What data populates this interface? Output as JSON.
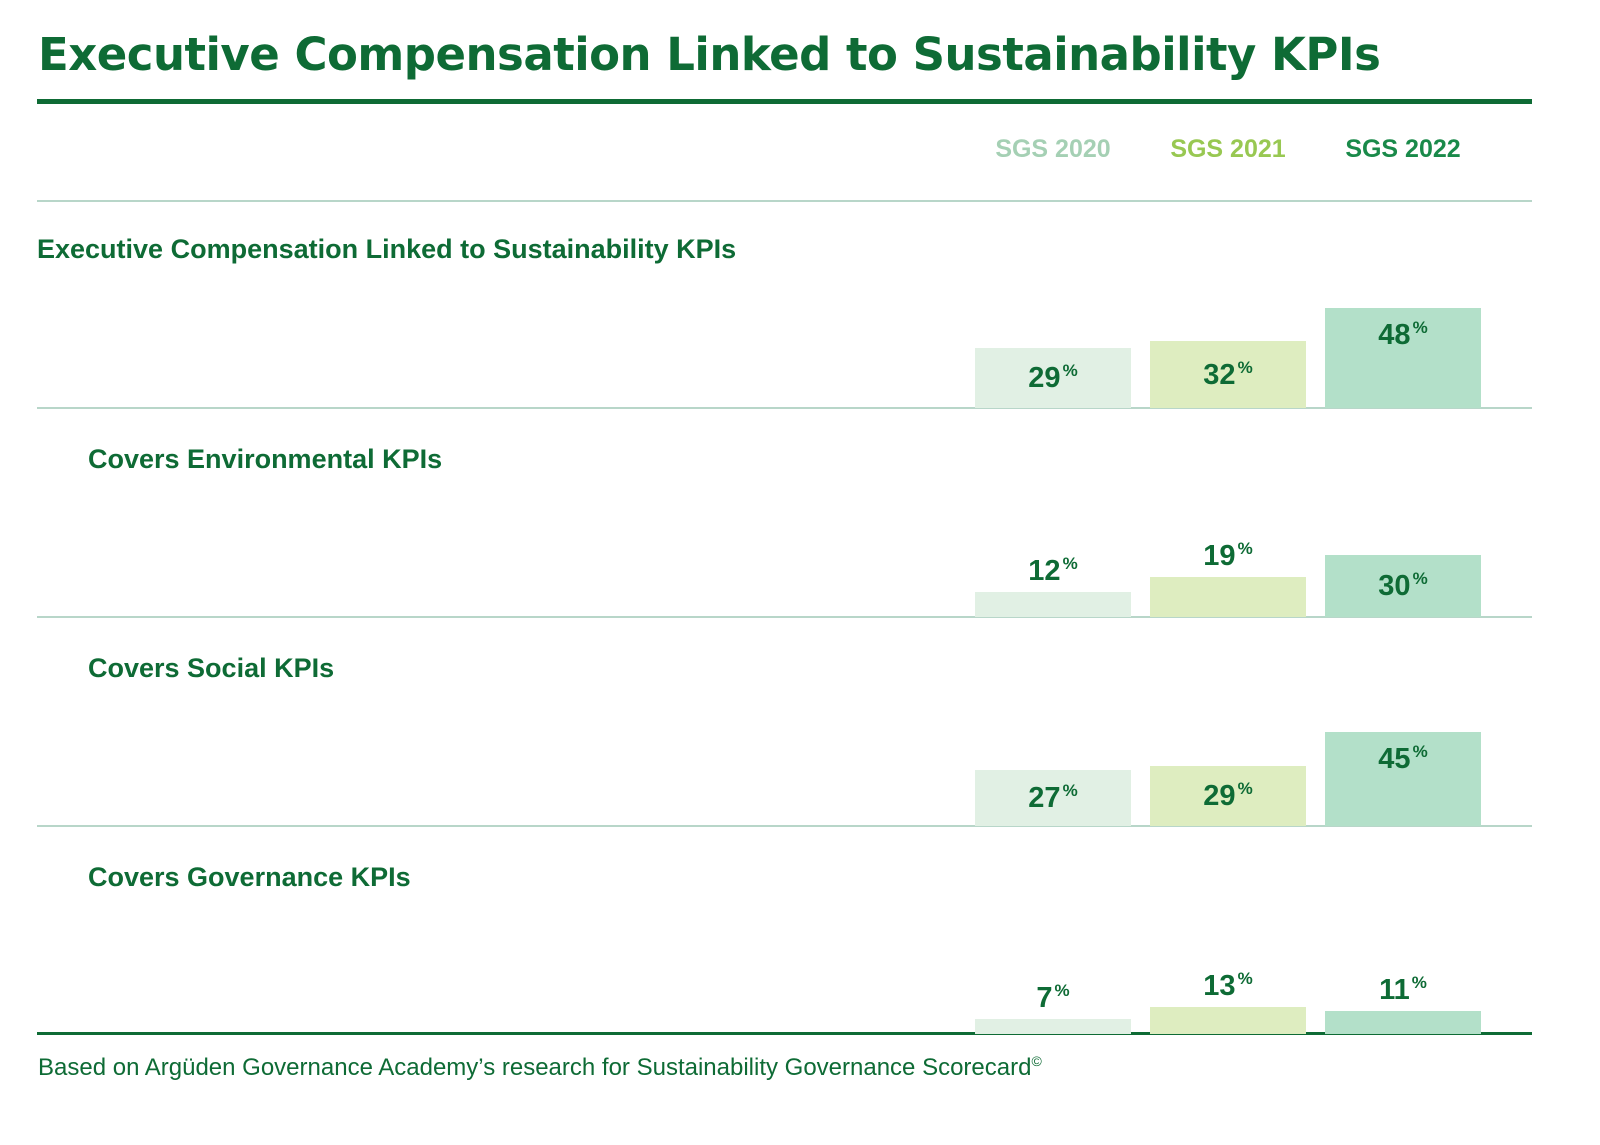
{
  "title": "Executive Compensation Linked to Sustainability KPIs",
  "footer": {
    "text": "Based on Argüden Governance Academy’s research for Sustainability Governance Scorecard",
    "mark": "©"
  },
  "colors": {
    "primary": "#0e6b35",
    "rule": "#b8d6c9",
    "series": [
      "#e1f0e4",
      "#deedc0",
      "#b3e0c9"
    ],
    "legend_text": [
      "#a5d0b4",
      "#98c852",
      "#1a8a4a"
    ]
  },
  "chart_data": {
    "type": "bar",
    "percent_sign": "%",
    "categories": [
      "Executive Compensation Linked to Sustainability KPIs",
      "Covers Environmental KPIs",
      "Covers Social KPIs",
      "Covers Governance KPIs"
    ],
    "series": [
      {
        "name": "SGS 2020",
        "values": [
          29,
          12,
          27,
          7
        ]
      },
      {
        "name": "SGS 2021",
        "values": [
          32,
          19,
          29,
          13
        ]
      },
      {
        "name": "SGS 2022",
        "values": [
          48,
          30,
          45,
          11
        ]
      }
    ],
    "unit": "%",
    "legend_position": "top-right",
    "grid": false
  }
}
